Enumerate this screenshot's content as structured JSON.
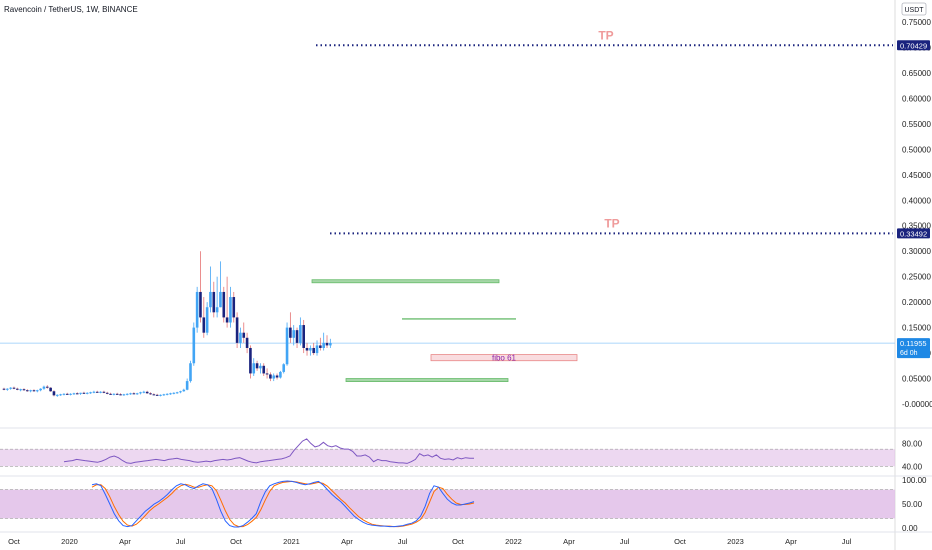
{
  "header": {
    "symbol_title": "Ravencoin / TetherUS, 1W, BINANCE",
    "currency": "USDT"
  },
  "chart_data": {
    "type": "candlestick",
    "title": "Ravencoin / TetherUS, 1W, BINANCE",
    "ylim": [
      -0.02,
      0.76
    ],
    "y_ticks": [
      "0.75000",
      "0.70000",
      "0.65000",
      "0.60000",
      "0.55000",
      "0.50000",
      "0.45000",
      "0.40000",
      "0.35000",
      "0.30000",
      "0.25000",
      "0.20000",
      "0.15000",
      "0.10000",
      "0.05000",
      "-0.00000"
    ],
    "y_tick_values": [
      0.75,
      0.7,
      0.65,
      0.6,
      0.55,
      0.5,
      0.45,
      0.4,
      0.35,
      0.3,
      0.25,
      0.2,
      0.15,
      0.1,
      0.05,
      0.0
    ],
    "time_labels": [
      "Oct",
      "2020",
      "Apr",
      "Jul",
      "Oct",
      "2021",
      "Apr",
      "Jul",
      "Oct",
      "2022",
      "Apr",
      "Jul",
      "Oct",
      "2023",
      "Apr",
      "Jul"
    ],
    "current_price": {
      "value": 0.11955,
      "label": "0.11955",
      "countdown": "6d 0h"
    },
    "targets": [
      {
        "label": "TP",
        "value": 0.70429,
        "value_label": "0.70429"
      },
      {
        "label": "TP",
        "value": 0.33492,
        "value_label": "0.33492"
      }
    ],
    "zones": [
      {
        "name": "resistance-zone",
        "low": 0.238,
        "high": 0.244,
        "color": "#a5d6a7"
      },
      {
        "name": "support-zone",
        "low": 0.044,
        "high": 0.05,
        "color": "#a5d6a7"
      },
      {
        "name": "fibo-zone",
        "low": 0.085,
        "high": 0.097,
        "color": "#f8d7da",
        "label": "fibo 61"
      }
    ],
    "trendline": {
      "value": 0.167,
      "color": "#4caf50"
    },
    "candles": [
      [
        0.03,
        0.032,
        0.027,
        0.029
      ],
      [
        0.029,
        0.031,
        0.026,
        0.03
      ],
      [
        0.03,
        0.033,
        0.028,
        0.032
      ],
      [
        0.032,
        0.034,
        0.029,
        0.03
      ],
      [
        0.03,
        0.032,
        0.027,
        0.028
      ],
      [
        0.028,
        0.03,
        0.025,
        0.029
      ],
      [
        0.029,
        0.031,
        0.026,
        0.027
      ],
      [
        0.027,
        0.029,
        0.024,
        0.026
      ],
      [
        0.026,
        0.028,
        0.023,
        0.027
      ],
      [
        0.027,
        0.029,
        0.024,
        0.025
      ],
      [
        0.025,
        0.028,
        0.023,
        0.027
      ],
      [
        0.027,
        0.031,
        0.025,
        0.03
      ],
      [
        0.03,
        0.036,
        0.028,
        0.034
      ],
      [
        0.034,
        0.037,
        0.03,
        0.032
      ],
      [
        0.032,
        0.033,
        0.024,
        0.025
      ],
      [
        0.025,
        0.027,
        0.015,
        0.017
      ],
      [
        0.017,
        0.019,
        0.014,
        0.018
      ],
      [
        0.018,
        0.02,
        0.016,
        0.019
      ],
      [
        0.019,
        0.021,
        0.017,
        0.02
      ],
      [
        0.02,
        0.022,
        0.018,
        0.019
      ],
      [
        0.019,
        0.021,
        0.017,
        0.02
      ],
      [
        0.02,
        0.022,
        0.018,
        0.021
      ],
      [
        0.021,
        0.023,
        0.019,
        0.02
      ],
      [
        0.02,
        0.022,
        0.018,
        0.022
      ],
      [
        0.022,
        0.024,
        0.02,
        0.021
      ],
      [
        0.021,
        0.023,
        0.019,
        0.022
      ],
      [
        0.022,
        0.024,
        0.02,
        0.023
      ],
      [
        0.023,
        0.026,
        0.021,
        0.024
      ],
      [
        0.024,
        0.026,
        0.022,
        0.023
      ],
      [
        0.023,
        0.025,
        0.021,
        0.024
      ],
      [
        0.024,
        0.026,
        0.021,
        0.022
      ],
      [
        0.022,
        0.024,
        0.019,
        0.02
      ],
      [
        0.02,
        0.022,
        0.018,
        0.019
      ],
      [
        0.019,
        0.021,
        0.017,
        0.02
      ],
      [
        0.02,
        0.022,
        0.018,
        0.019
      ],
      [
        0.019,
        0.021,
        0.017,
        0.018
      ],
      [
        0.018,
        0.02,
        0.016,
        0.019
      ],
      [
        0.019,
        0.021,
        0.017,
        0.02
      ],
      [
        0.02,
        0.022,
        0.018,
        0.021
      ],
      [
        0.021,
        0.023,
        0.019,
        0.02
      ],
      [
        0.02,
        0.022,
        0.018,
        0.021
      ],
      [
        0.021,
        0.024,
        0.019,
        0.023
      ],
      [
        0.023,
        0.026,
        0.021,
        0.024
      ],
      [
        0.024,
        0.026,
        0.02,
        0.021
      ],
      [
        0.021,
        0.023,
        0.018,
        0.019
      ],
      [
        0.019,
        0.021,
        0.017,
        0.018
      ],
      [
        0.018,
        0.02,
        0.016,
        0.017
      ],
      [
        0.017,
        0.019,
        0.015,
        0.018
      ],
      [
        0.018,
        0.02,
        0.016,
        0.019
      ],
      [
        0.019,
        0.021,
        0.017,
        0.02
      ],
      [
        0.02,
        0.022,
        0.018,
        0.021
      ],
      [
        0.021,
        0.023,
        0.019,
        0.022
      ],
      [
        0.022,
        0.024,
        0.02,
        0.023
      ],
      [
        0.023,
        0.026,
        0.021,
        0.025
      ],
      [
        0.025,
        0.03,
        0.024,
        0.028
      ],
      [
        0.028,
        0.05,
        0.027,
        0.045
      ],
      [
        0.045,
        0.085,
        0.042,
        0.08
      ],
      [
        0.08,
        0.16,
        0.075,
        0.15
      ],
      [
        0.15,
        0.23,
        0.14,
        0.22
      ],
      [
        0.22,
        0.3,
        0.16,
        0.17
      ],
      [
        0.17,
        0.21,
        0.13,
        0.14
      ],
      [
        0.14,
        0.2,
        0.135,
        0.19
      ],
      [
        0.19,
        0.27,
        0.18,
        0.22
      ],
      [
        0.22,
        0.24,
        0.17,
        0.18
      ],
      [
        0.18,
        0.25,
        0.17,
        0.19
      ],
      [
        0.19,
        0.28,
        0.19,
        0.22
      ],
      [
        0.22,
        0.23,
        0.16,
        0.17
      ],
      [
        0.17,
        0.25,
        0.15,
        0.16
      ],
      [
        0.16,
        0.23,
        0.15,
        0.21
      ],
      [
        0.21,
        0.22,
        0.16,
        0.17
      ],
      [
        0.17,
        0.18,
        0.11,
        0.12
      ],
      [
        0.12,
        0.15,
        0.11,
        0.14
      ],
      [
        0.14,
        0.16,
        0.12,
        0.13
      ],
      [
        0.13,
        0.14,
        0.1,
        0.11
      ],
      [
        0.11,
        0.115,
        0.05,
        0.06
      ],
      [
        0.06,
        0.09,
        0.055,
        0.08
      ],
      [
        0.08,
        0.085,
        0.065,
        0.07
      ],
      [
        0.07,
        0.08,
        0.06,
        0.075
      ],
      [
        0.075,
        0.08,
        0.055,
        0.06
      ],
      [
        0.06,
        0.07,
        0.05,
        0.058
      ],
      [
        0.058,
        0.062,
        0.045,
        0.05
      ],
      [
        0.05,
        0.06,
        0.045,
        0.056
      ],
      [
        0.056,
        0.06,
        0.048,
        0.052
      ],
      [
        0.052,
        0.065,
        0.05,
        0.063
      ],
      [
        0.063,
        0.08,
        0.06,
        0.078
      ],
      [
        0.078,
        0.16,
        0.075,
        0.15
      ],
      [
        0.15,
        0.18,
        0.12,
        0.13
      ],
      [
        0.13,
        0.155,
        0.115,
        0.145
      ],
      [
        0.145,
        0.15,
        0.11,
        0.12
      ],
      [
        0.12,
        0.17,
        0.115,
        0.155
      ],
      [
        0.155,
        0.165,
        0.1,
        0.11
      ],
      [
        0.11,
        0.12,
        0.095,
        0.105
      ],
      [
        0.105,
        0.115,
        0.095,
        0.11
      ],
      [
        0.11,
        0.12,
        0.096,
        0.1
      ],
      [
        0.1,
        0.125,
        0.095,
        0.115
      ],
      [
        0.115,
        0.13,
        0.105,
        0.11
      ],
      [
        0.11,
        0.14,
        0.105,
        0.12
      ],
      [
        0.12,
        0.135,
        0.11,
        0.115
      ],
      [
        0.115,
        0.128,
        0.11,
        0.1196
      ]
    ],
    "rsi": {
      "ylim": [
        30,
        100
      ],
      "y_ticks": [
        "80.00",
        "40.00"
      ],
      "y_tick_values": [
        80,
        40
      ],
      "band": [
        40,
        70
      ],
      "line_color": "#7e57c2",
      "values": [
        48,
        49,
        50,
        52,
        51,
        50,
        49,
        48,
        47,
        49,
        52,
        56,
        58,
        55,
        50,
        46,
        45,
        47,
        48,
        49,
        50,
        51,
        52,
        51,
        50,
        52,
        53,
        54,
        52,
        51,
        50,
        48,
        47,
        48,
        49,
        48,
        50,
        51,
        52,
        51,
        52,
        54,
        55,
        52,
        49,
        47,
        46,
        48,
        49,
        50,
        51,
        52,
        53,
        55,
        58,
        68,
        76,
        84,
        88,
        80,
        74,
        76,
        82,
        76,
        74,
        76,
        72,
        70,
        70,
        66,
        58,
        58,
        60,
        56,
        48,
        52,
        50,
        50,
        48,
        47,
        46,
        46,
        45,
        48,
        52,
        62,
        58,
        60,
        56,
        60,
        54,
        52,
        53,
        51,
        55,
        53,
        55,
        54,
        54
      ]
    },
    "stoch_rsi": {
      "ylim": [
        0,
        100
      ],
      "y_ticks": [
        "100.00",
        "50.00",
        "0.00"
      ],
      "y_tick_values": [
        100,
        50,
        0
      ],
      "band": [
        20,
        80
      ],
      "k_color": "#2962ff",
      "d_color": "#ff6d00",
      "k": [
        90,
        92,
        88,
        70,
        50,
        30,
        15,
        5,
        3,
        5,
        15,
        25,
        35,
        42,
        50,
        55,
        62,
        70,
        80,
        88,
        92,
        90,
        85,
        82,
        88,
        92,
        90,
        82,
        60,
        35,
        15,
        5,
        2,
        2,
        5,
        12,
        20,
        30,
        55,
        75,
        88,
        92,
        95,
        97,
        98,
        97,
        95,
        92,
        90,
        92,
        95,
        97,
        90,
        80,
        70,
        62,
        55,
        45,
        35,
        25,
        18,
        12,
        8,
        6,
        5,
        4,
        4,
        3,
        3,
        4,
        5,
        8,
        10,
        15,
        25,
        45,
        72,
        88,
        85,
        72,
        60,
        52,
        48,
        48,
        50,
        52,
        55
      ],
      "d": [
        85,
        90,
        90,
        82,
        65,
        45,
        28,
        14,
        6,
        4,
        8,
        16,
        26,
        36,
        44,
        50,
        57,
        64,
        72,
        82,
        88,
        91,
        89,
        85,
        85,
        88,
        90,
        88,
        78,
        58,
        36,
        18,
        7,
        3,
        3,
        7,
        14,
        22,
        38,
        58,
        76,
        88,
        92,
        95,
        96,
        97,
        96,
        94,
        92,
        91,
        93,
        95,
        93,
        87,
        78,
        69,
        60,
        52,
        42,
        33,
        24,
        17,
        12,
        8,
        6,
        5,
        4,
        4,
        3,
        3,
        4,
        6,
        8,
        12,
        18,
        32,
        54,
        76,
        85,
        82,
        70,
        60,
        52,
        49,
        49,
        50,
        52
      ]
    }
  },
  "colors": {
    "up": "#42a5f5",
    "down": "#1a237e",
    "tp_line": "#1a237e",
    "tp_text": "#ef9a9a",
    "price_line": "#90caf9",
    "price_tag": "#1e88e5",
    "indicator_band": "#e1bee7"
  }
}
